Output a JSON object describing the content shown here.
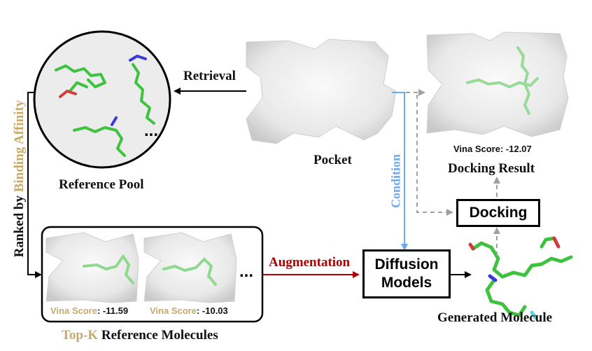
{
  "labels": {
    "retrieval": "Retrieval",
    "reference_pool": "Reference Pool",
    "ranked_prefix": "Ranked by ",
    "ranked_highlight": "Binding Affinity",
    "pocket": "Pocket",
    "condition": "Condition",
    "docking_result": "Docking Result",
    "docking": "Docking",
    "augmentation": "Augmentation",
    "diffusion_line1": "Diffusion",
    "diffusion_line2": "Models",
    "generated_molecule": "Generated Molecule",
    "topk_highlight": "Top-K",
    "topk_rest": " Reference Molecules",
    "pool_ellipsis": "...",
    "refs_ellipsis": "..."
  },
  "scores": {
    "ref1_label": "Vina Score",
    "ref1_value": ": -11.59",
    "ref2_label": "Vina Score",
    "ref2_value": ": -10.03",
    "docking_label": "Vina Score",
    "docking_value": ": -12.07"
  },
  "colors": {
    "gold": "#c8a96a",
    "condition_blue": "#6aaaf0",
    "augmentation_red": "#b00000",
    "molecule_green": "#3fc23f",
    "dashed_gray": "#a0a0a0"
  }
}
